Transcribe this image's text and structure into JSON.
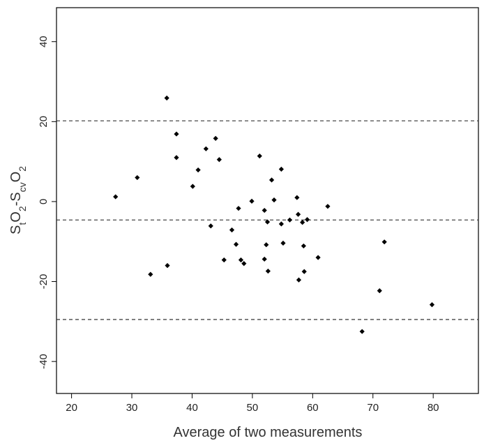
{
  "chart_data": {
    "type": "scatter",
    "title": "",
    "xlabel": "Average of two measurements",
    "ylabel": {
      "parts": [
        {
          "text": "S",
          "sub": false
        },
        {
          "text": "t",
          "sub": true
        },
        {
          "text": "O",
          "sub": false
        },
        {
          "text": "2",
          "sub": true
        },
        {
          "text": "-S",
          "sub": false
        },
        {
          "text": "cv",
          "sub": true
        },
        {
          "text": "O",
          "sub": false
        },
        {
          "text": "2",
          "sub": true
        }
      ]
    },
    "xlim": [
      17.5,
      87.5
    ],
    "ylim": [
      -48,
      48.5
    ],
    "x_ticks": [
      20,
      30,
      40,
      50,
      60,
      70,
      80
    ],
    "y_ticks": [
      -40,
      -20,
      0,
      20,
      40
    ],
    "reference_lines": [
      20.2,
      -4.6,
      -29.5
    ],
    "reference_line_style": "dashed",
    "grid": false,
    "marker": "diamond",
    "marker_color": "#000000",
    "points": [
      {
        "x": 27.3,
        "y": 1.2
      },
      {
        "x": 30.9,
        "y": 6.0
      },
      {
        "x": 33.1,
        "y": -18.2
      },
      {
        "x": 35.8,
        "y": 25.9
      },
      {
        "x": 35.9,
        "y": -16.0
      },
      {
        "x": 37.4,
        "y": 16.9
      },
      {
        "x": 37.4,
        "y": 11.0
      },
      {
        "x": 40.1,
        "y": 3.8
      },
      {
        "x": 41.0,
        "y": 7.9
      },
      {
        "x": 42.3,
        "y": 13.2
      },
      {
        "x": 43.1,
        "y": -6.1
      },
      {
        "x": 43.9,
        "y": 15.8
      },
      {
        "x": 44.5,
        "y": 10.5
      },
      {
        "x": 45.3,
        "y": -14.6
      },
      {
        "x": 46.6,
        "y": -7.1
      },
      {
        "x": 47.3,
        "y": -10.7
      },
      {
        "x": 47.7,
        "y": -1.7
      },
      {
        "x": 48.1,
        "y": -14.6
      },
      {
        "x": 48.6,
        "y": -15.5
      },
      {
        "x": 49.9,
        "y": 0.1
      },
      {
        "x": 51.2,
        "y": 11.4
      },
      {
        "x": 52.0,
        "y": -2.2
      },
      {
        "x": 52.0,
        "y": -14.4
      },
      {
        "x": 52.3,
        "y": -10.8
      },
      {
        "x": 52.5,
        "y": -5.1
      },
      {
        "x": 52.6,
        "y": -17.4
      },
      {
        "x": 53.2,
        "y": 5.4
      },
      {
        "x": 53.6,
        "y": 0.4
      },
      {
        "x": 54.8,
        "y": 8.1
      },
      {
        "x": 54.8,
        "y": -5.6
      },
      {
        "x": 55.1,
        "y": -10.4
      },
      {
        "x": 56.2,
        "y": -4.6
      },
      {
        "x": 57.4,
        "y": 1.0
      },
      {
        "x": 57.6,
        "y": -3.2
      },
      {
        "x": 57.7,
        "y": -19.6
      },
      {
        "x": 58.3,
        "y": -5.2
      },
      {
        "x": 58.5,
        "y": -11.1
      },
      {
        "x": 58.6,
        "y": -17.5
      },
      {
        "x": 59.1,
        "y": -4.5
      },
      {
        "x": 60.9,
        "y": -14.0
      },
      {
        "x": 62.5,
        "y": -1.2
      },
      {
        "x": 68.2,
        "y": -32.5
      },
      {
        "x": 71.1,
        "y": -22.3
      },
      {
        "x": 71.9,
        "y": -10.1
      },
      {
        "x": 79.8,
        "y": -25.8
      }
    ]
  }
}
